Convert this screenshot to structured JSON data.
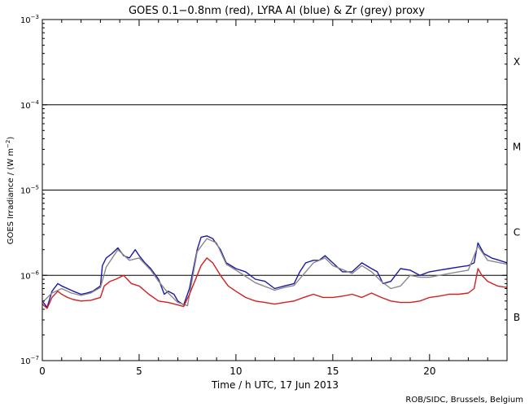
{
  "chart_data": {
    "type": "line",
    "title": "GOES 0.1−0.8nm (red), LYRA Al (blue) & Zr (grey) proxy",
    "xlabel": "Time / h UTC, 17 Jun 2013",
    "ylabel_main": "GOES Irradiance / (W m",
    "ylabel_exp": "−2",
    "ylabel_tail": ")",
    "credit": "ROB/SIDC, Brussels, Belgium",
    "y_scale": "log",
    "xlim": [
      0,
      24
    ],
    "ylim": [
      1e-07,
      0.001
    ],
    "x_ticks": [
      0,
      5,
      10,
      15,
      20
    ],
    "x_tick_labels": [
      "0",
      "5",
      "10",
      "15",
      "20"
    ],
    "y_ticks": [
      1e-07,
      1e-06,
      1e-05,
      0.0001,
      0.001
    ],
    "y_tick_labels": [
      {
        "base": "10",
        "exp": "−7"
      },
      {
        "base": "10",
        "exp": "−6"
      },
      {
        "base": "10",
        "exp": "−5"
      },
      {
        "base": "10",
        "exp": "−4"
      },
      {
        "base": "10",
        "exp": "−3"
      }
    ],
    "flare_class_lines": [
      1e-06,
      1e-05,
      0.0001
    ],
    "flare_classes": [
      {
        "label": "B",
        "y": 3.2e-07
      },
      {
        "label": "C",
        "y": 3.2e-06
      },
      {
        "label": "M",
        "y": 3.2e-05
      },
      {
        "label": "X",
        "y": 0.00032
      }
    ],
    "series": [
      {
        "color": "#1a1aa6",
        "x": [
          0,
          0.25,
          0.5,
          0.8,
          1,
          1.3,
          1.6,
          2,
          2.3,
          2.6,
          3,
          3.1,
          3.3,
          3.6,
          3.9,
          4.2,
          4.5,
          4.8,
          5,
          5.3,
          5.6,
          6,
          6.3,
          6.5,
          6.8,
          7,
          7.3,
          7.6,
          8,
          8.2,
          8.5,
          8.8,
          9.2,
          9.5,
          10,
          10.5,
          11,
          11.5,
          12,
          12.5,
          13,
          13.3,
          13.6,
          14,
          14.3,
          14.6,
          15,
          15.5,
          16,
          16.5,
          17,
          17.3,
          17.6,
          18,
          18.5,
          19,
          19.5,
          20,
          20.5,
          21,
          21.5,
          22,
          22.3,
          22.5,
          22.8,
          23.2,
          23.6,
          24
        ],
        "y": [
          5e-07,
          4.2e-07,
          6.5e-07,
          8e-07,
          7.5e-07,
          7e-07,
          6.5e-07,
          6e-07,
          6.2e-07,
          6.5e-07,
          7.5e-07,
          1.3e-06,
          1.6e-06,
          1.8e-06,
          2.1e-06,
          1.7e-06,
          1.6e-06,
          2e-06,
          1.7e-06,
          1.4e-06,
          1.2e-06,
          9e-07,
          6e-07,
          6.5e-07,
          6e-07,
          5e-07,
          4.5e-07,
          7e-07,
          2e-06,
          2.8e-06,
          2.9e-06,
          2.7e-06,
          2e-06,
          1.4e-06,
          1.2e-06,
          1.1e-06,
          9e-07,
          8.5e-07,
          7e-07,
          7.5e-07,
          8e-07,
          1.1e-06,
          1.4e-06,
          1.5e-06,
          1.5e-06,
          1.7e-06,
          1.4e-06,
          1.1e-06,
          1.1e-06,
          1.4e-06,
          1.2e-06,
          1.1e-06,
          8e-07,
          8.5e-07,
          1.2e-06,
          1.15e-06,
          1e-06,
          1.1e-06,
          1.15e-06,
          1.2e-06,
          1.25e-06,
          1.3e-06,
          1.4e-06,
          2.4e-06,
          1.8e-06,
          1.6e-06,
          1.5e-06,
          1.4e-06
        ]
      },
      {
        "color": "#888888",
        "x": [
          0,
          0.5,
          1,
          1.5,
          2,
          2.5,
          3,
          3.3,
          3.9,
          4.5,
          5,
          5.6,
          6,
          6.5,
          7,
          7.5,
          8,
          8.5,
          9,
          9.5,
          10,
          11,
          12,
          12.5,
          13,
          14,
          14.6,
          15,
          16,
          16.5,
          17,
          17.5,
          18,
          18.5,
          19,
          19.5,
          20,
          21,
          22,
          22.5,
          23,
          24
        ],
        "y": [
          4.8e-07,
          6.2e-07,
          7e-07,
          6.2e-07,
          5.8e-07,
          6.2e-07,
          7.2e-07,
          1.25e-06,
          2e-06,
          1.5e-06,
          1.6e-06,
          1.15e-06,
          8.5e-07,
          6.2e-07,
          4.8e-07,
          4.4e-07,
          1.9e-06,
          2.7e-06,
          2.4e-06,
          1.35e-06,
          1.15e-06,
          8.2e-07,
          6.7e-07,
          7.2e-07,
          7.6e-07,
          1.4e-06,
          1.6e-06,
          1.3e-06,
          1.05e-06,
          1.3e-06,
          1.1e-06,
          8.5e-07,
          7e-07,
          7.5e-07,
          1e-06,
          9.5e-07,
          9.5e-07,
          1.05e-06,
          1.15e-06,
          2.2e-06,
          1.5e-06,
          1.35e-06
        ]
      },
      {
        "color": "#d41f1f",
        "x": [
          0,
          0.25,
          0.5,
          0.8,
          1,
          1.3,
          1.6,
          2,
          2.5,
          3,
          3.2,
          3.5,
          3.8,
          4.2,
          4.6,
          5,
          5.5,
          6,
          6.5,
          7,
          7.3,
          7.6,
          8,
          8.2,
          8.5,
          8.8,
          9.2,
          9.6,
          10,
          10.5,
          11,
          11.5,
          12,
          12.5,
          13,
          13.5,
          14,
          14.5,
          15,
          15.5,
          16,
          16.5,
          17,
          17.5,
          18,
          18.5,
          19,
          19.5,
          20,
          20.5,
          21,
          21.5,
          22,
          22.3,
          22.5,
          22.7,
          23,
          23.5,
          24
        ],
        "y": [
          4.6e-07,
          4.1e-07,
          5.5e-07,
          6.5e-07,
          6e-07,
          5.5e-07,
          5.2e-07,
          5e-07,
          5.1e-07,
          5.5e-07,
          7.5e-07,
          8.5e-07,
          9e-07,
          1e-06,
          8e-07,
          7.5e-07,
          6e-07,
          5e-07,
          4.8e-07,
          4.5e-07,
          4.3e-07,
          6e-07,
          1e-06,
          1.3e-06,
          1.6e-06,
          1.4e-06,
          1e-06,
          7.5e-07,
          6.5e-07,
          5.5e-07,
          5e-07,
          4.8e-07,
          4.6e-07,
          4.8e-07,
          5e-07,
          5.5e-07,
          6e-07,
          5.5e-07,
          5.5e-07,
          5.7e-07,
          6e-07,
          5.5e-07,
          6.2e-07,
          5.5e-07,
          5e-07,
          4.8e-07,
          4.8e-07,
          5e-07,
          5.5e-07,
          5.7e-07,
          6e-07,
          6e-07,
          6.2e-07,
          7e-07,
          1.2e-06,
          1e-06,
          8.5e-07,
          7.5e-07,
          7.2e-07
        ]
      }
    ]
  }
}
